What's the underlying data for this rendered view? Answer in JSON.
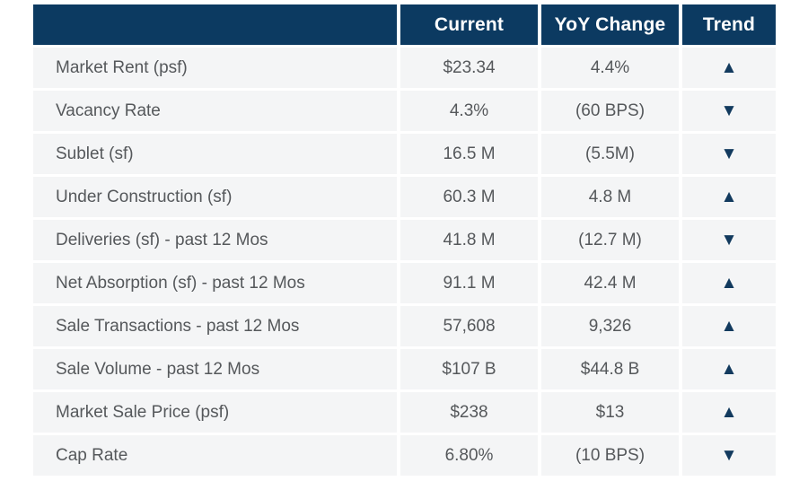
{
  "colors": {
    "header_bg": "#0c3a61",
    "header_text": "#ffffff",
    "row_bg": "#f4f5f6",
    "body_text": "#55585b",
    "trend_arrow": "#123a5e",
    "page_bg": "#ffffff"
  },
  "chart_data": {
    "type": "table",
    "columns": [
      "",
      "Current",
      "YoY Change",
      "Trend"
    ],
    "legend_position": "none",
    "grid": false,
    "rows": [
      {
        "label": "Market Rent (psf)",
        "current": "$23.34",
        "yoy_change": "4.4%",
        "trend": "up",
        "trend_glyph": "▲"
      },
      {
        "label": "Vacancy Rate",
        "current": "4.3%",
        "yoy_change": "(60 BPS)",
        "trend": "down",
        "trend_glyph": "▼"
      },
      {
        "label": "Sublet (sf)",
        "current": "16.5 M",
        "yoy_change": "(5.5M)",
        "trend": "down",
        "trend_glyph": "▼"
      },
      {
        "label": "Under Construction (sf)",
        "current": "60.3 M",
        "yoy_change": "4.8 M",
        "trend": "up",
        "trend_glyph": "▲"
      },
      {
        "label": "Deliveries (sf) - past 12 Mos",
        "current": "41.8 M",
        "yoy_change": "(12.7 M)",
        "trend": "down",
        "trend_glyph": "▼"
      },
      {
        "label": "Net Absorption (sf) - past 12 Mos",
        "current": "91.1 M",
        "yoy_change": "42.4 M",
        "trend": "up",
        "trend_glyph": "▲"
      },
      {
        "label": "Sale Transactions - past 12 Mos",
        "current": "57,608",
        "yoy_change": "9,326",
        "trend": "up",
        "trend_glyph": "▲"
      },
      {
        "label": "Sale Volume - past 12 Mos",
        "current": "$107 B",
        "yoy_change": "$44.8 B",
        "trend": "up",
        "trend_glyph": "▲"
      },
      {
        "label": "Market Sale Price (psf)",
        "current": "$238",
        "yoy_change": "$13",
        "trend": "up",
        "trend_glyph": "▲"
      },
      {
        "label": "Cap Rate",
        "current": "6.80%",
        "yoy_change": "(10 BPS)",
        "trend": "down",
        "trend_glyph": "▼"
      }
    ]
  }
}
